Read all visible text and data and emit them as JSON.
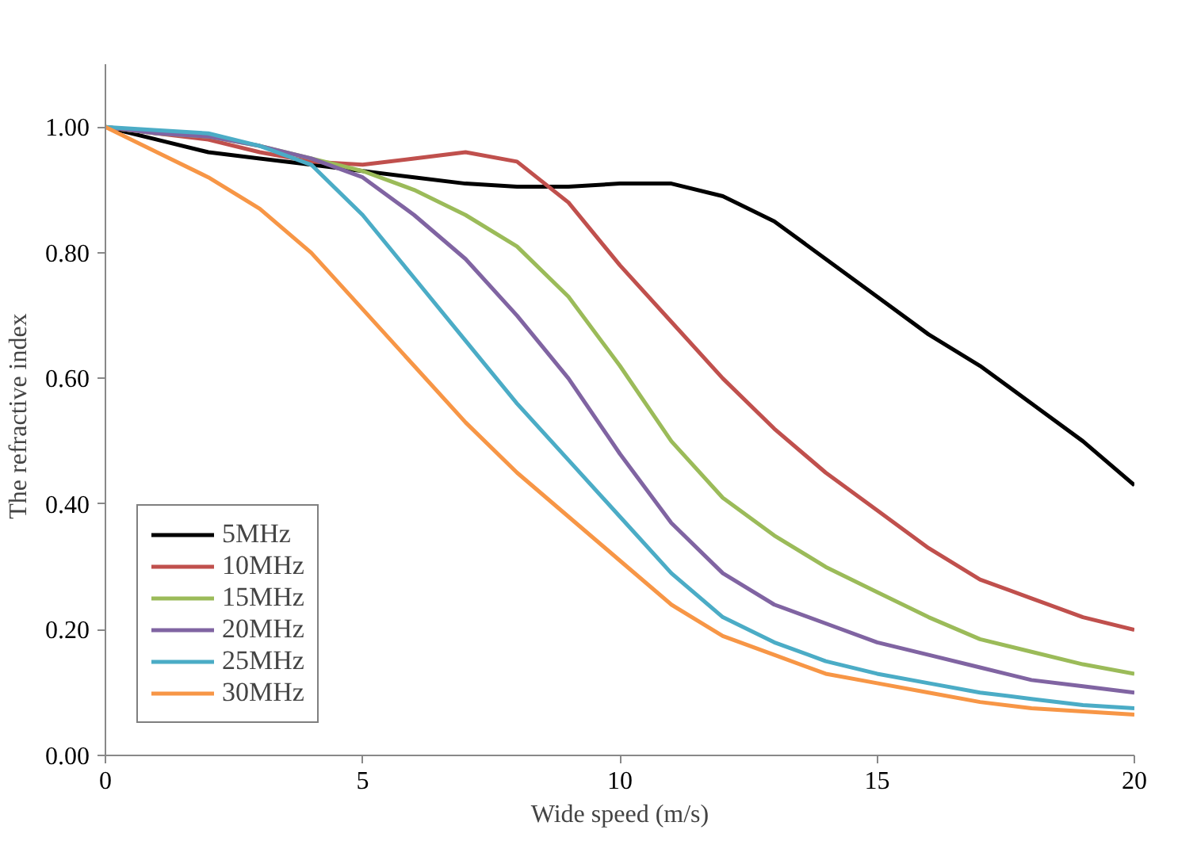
{
  "chart_data": {
    "type": "line",
    "xlabel": "Wide speed (m/s)",
    "ylabel": "The  refractive  index",
    "x": [
      0,
      1,
      2,
      3,
      4,
      5,
      6,
      7,
      8,
      9,
      10,
      11,
      12,
      13,
      14,
      15,
      16,
      17,
      18,
      19,
      20
    ],
    "xlim": [
      0,
      20
    ],
    "xticks": [
      0,
      5,
      10,
      15,
      20
    ],
    "ylim": [
      0,
      1.1
    ],
    "yticks": [
      {
        "value": 0,
        "label": "0.00"
      },
      {
        "value": 0.2,
        "label": "0.20"
      },
      {
        "value": 0.4,
        "label": "0.40"
      },
      {
        "value": 0.6,
        "label": "0.60"
      },
      {
        "value": 0.8,
        "label": "0.80"
      },
      {
        "value": 1,
        "label": "1.00"
      }
    ],
    "grid": false,
    "legend": "bottom left",
    "marker": "none",
    "line_style": "solid",
    "series": [
      {
        "name": "5MHz",
        "color": "#000000",
        "values": [
          1.0,
          0.98,
          0.96,
          0.95,
          0.94,
          0.93,
          0.92,
          0.91,
          0.905,
          0.905,
          0.91,
          0.91,
          0.89,
          0.85,
          0.79,
          0.73,
          0.67,
          0.62,
          0.56,
          0.5,
          0.43
        ]
      },
      {
        "name": "10MHz",
        "color": "#c0504d",
        "values": [
          1.0,
          0.99,
          0.98,
          0.96,
          0.945,
          0.94,
          0.95,
          0.96,
          0.945,
          0.88,
          0.78,
          0.69,
          0.6,
          0.52,
          0.45,
          0.39,
          0.33,
          0.28,
          0.25,
          0.22,
          0.2
        ]
      },
      {
        "name": "15MHz",
        "color": "#9bbb59",
        "values": [
          1.0,
          0.99,
          0.985,
          0.97,
          0.95,
          0.93,
          0.9,
          0.86,
          0.81,
          0.73,
          0.62,
          0.5,
          0.41,
          0.35,
          0.3,
          0.26,
          0.22,
          0.185,
          0.165,
          0.145,
          0.13
        ]
      },
      {
        "name": "20MHz",
        "color": "#8064a2",
        "values": [
          1.0,
          0.99,
          0.985,
          0.97,
          0.95,
          0.92,
          0.86,
          0.79,
          0.7,
          0.6,
          0.48,
          0.37,
          0.29,
          0.24,
          0.21,
          0.18,
          0.16,
          0.14,
          0.12,
          0.11,
          0.1
        ]
      },
      {
        "name": "25MHz",
        "color": "#4bacc6",
        "values": [
          1.0,
          0.995,
          0.99,
          0.97,
          0.94,
          0.86,
          0.76,
          0.66,
          0.56,
          0.47,
          0.38,
          0.29,
          0.22,
          0.18,
          0.15,
          0.13,
          0.115,
          0.1,
          0.09,
          0.08,
          0.075
        ]
      },
      {
        "name": "30MHz",
        "color": "#f79646",
        "values": [
          1.0,
          0.96,
          0.92,
          0.87,
          0.8,
          0.71,
          0.62,
          0.53,
          0.45,
          0.38,
          0.31,
          0.24,
          0.19,
          0.16,
          0.13,
          0.115,
          0.1,
          0.085,
          0.075,
          0.07,
          0.065
        ]
      }
    ]
  }
}
